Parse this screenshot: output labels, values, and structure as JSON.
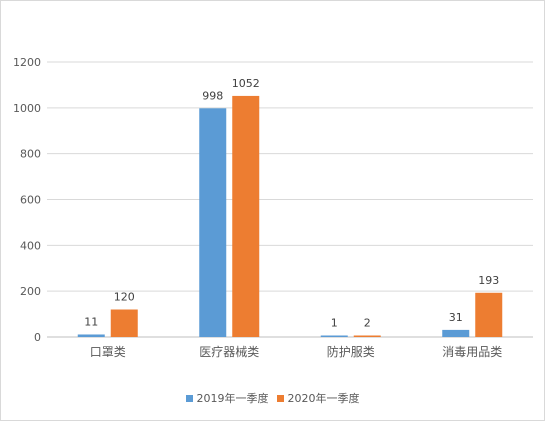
{
  "chart_data": {
    "type": "bar",
    "categories": [
      "口罩类",
      "医疗器械类",
      "防护服类",
      "消毒用品类"
    ],
    "series": [
      {
        "name": "2019年一季度",
        "values": [
          11,
          998,
          1,
          31
        ],
        "color": "#5B9BD5"
      },
      {
        "name": "2020年一季度",
        "values": [
          120,
          1052,
          2,
          193
        ],
        "color": "#ED7D31"
      }
    ],
    "y_ticks": [
      "0",
      "200",
      "400",
      "600",
      "800",
      "1000",
      "1200"
    ],
    "ylim": [
      0,
      1200
    ],
    "grid": true,
    "data_labels": true,
    "legend_position": "bottom",
    "title": "",
    "xlabel": "",
    "ylabel": ""
  }
}
